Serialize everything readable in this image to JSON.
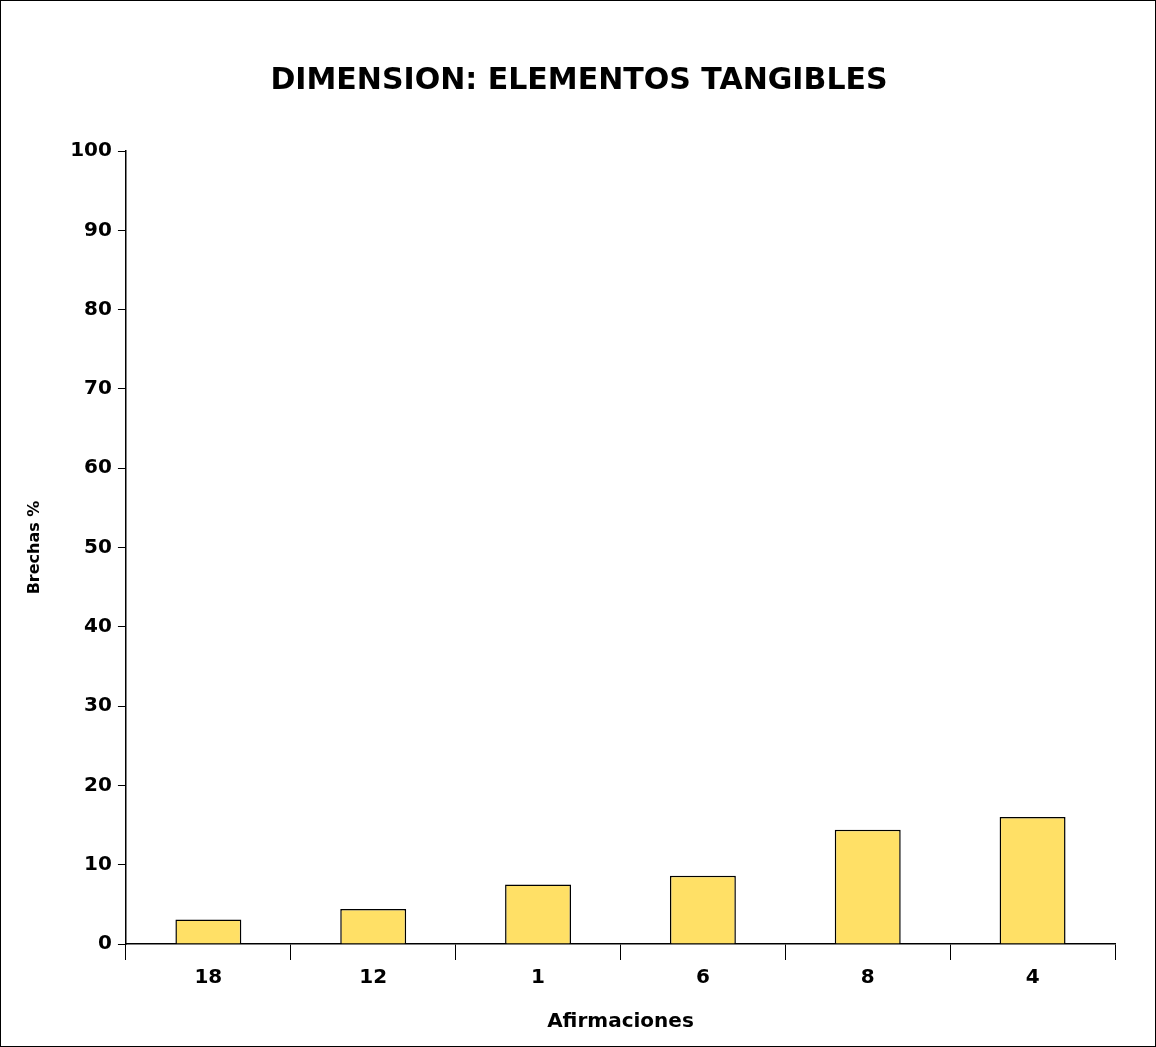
{
  "chart_data": {
    "type": "bar",
    "title": "DIMENSION: ELEMENTOS TANGIBLES",
    "xlabel": "Afirmaciones",
    "ylabel": "Brechas %",
    "categories": [
      "18",
      "12",
      "1",
      "6",
      "8",
      "4"
    ],
    "values": [
      3.1,
      4.4,
      7.5,
      8.6,
      14.4,
      16.0
    ],
    "color": "#ffe066",
    "ylim": [
      0,
      100
    ],
    "yticks": [
      0,
      10,
      20,
      30,
      40,
      50,
      60,
      70,
      80,
      90,
      100
    ],
    "grid": false,
    "legend": false
  }
}
